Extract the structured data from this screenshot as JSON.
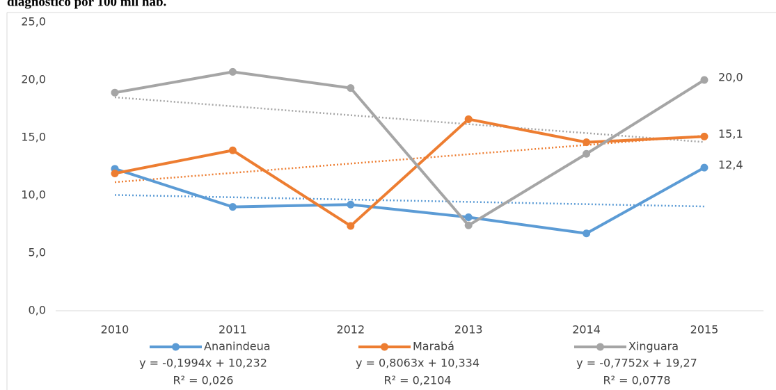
{
  "chart_data": {
    "type": "line",
    "title": "diagnóstico por 100 mil hab.",
    "categories": [
      "2010",
      "2011",
      "2012",
      "2013",
      "2014",
      "2015"
    ],
    "series": [
      {
        "name": "Ananindeua",
        "color": "#5b9bd5",
        "values": [
          12.3,
          9.0,
          9.2,
          8.1,
          6.7,
          12.4
        ],
        "value_labels": [
          null,
          null,
          null,
          null,
          null,
          "12,4"
        ],
        "trendline": {
          "slope": -0.1994,
          "intercept": 10.232,
          "equation": "y = -0,1994x + 10,232",
          "r2": "R² = 0,026"
        }
      },
      {
        "name": "Marabá",
        "color": "#ed7d31",
        "values": [
          11.9,
          13.9,
          7.35,
          16.6,
          14.6,
          15.1
        ],
        "value_labels": [
          null,
          null,
          null,
          null,
          null,
          "15,1"
        ],
        "trendline": {
          "slope": 0.8063,
          "intercept": 10.334,
          "equation": "y = 0,8063x + 10,334",
          "r2": "R² = 0,2104"
        }
      },
      {
        "name": "Xinguara",
        "color": "#a5a5a5",
        "values": [
          18.9,
          20.7,
          19.3,
          7.4,
          13.6,
          20.0
        ],
        "value_labels": [
          null,
          null,
          null,
          null,
          null,
          "20,0"
        ],
        "trendline": {
          "slope": -0.7752,
          "intercept": 19.27,
          "equation": "y = -0,7752x + 19,27",
          "r2": "R² = 0,0778"
        }
      }
    ],
    "ylim": [
      0,
      25
    ],
    "yticks": [
      {
        "value": 0,
        "label": "0,0"
      },
      {
        "value": 5,
        "label": "5,0"
      },
      {
        "value": 10,
        "label": "10,0"
      },
      {
        "value": 15,
        "label": "15,0"
      },
      {
        "value": 20,
        "label": "20,0"
      },
      {
        "value": 25,
        "label": "25,0"
      }
    ],
    "grid": false,
    "legend": "bottom"
  }
}
